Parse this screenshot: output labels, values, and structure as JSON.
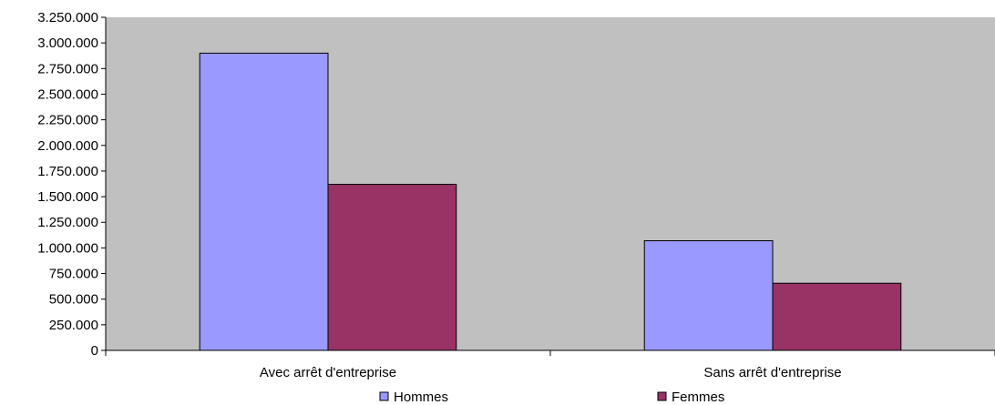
{
  "chart_data": {
    "type": "bar",
    "categories": [
      "Avec arrêt d'entreprise",
      "Sans arrêt d'entreprise"
    ],
    "series": [
      {
        "name": "Hommes",
        "values": [
          2900000,
          1070000
        ],
        "color": "#9999ff"
      },
      {
        "name": "Femmes",
        "values": [
          1620000,
          655000
        ],
        "color": "#993366"
      }
    ],
    "ylim": [
      0,
      3250000
    ],
    "yticks": [
      0,
      250000,
      500000,
      750000,
      1000000,
      1250000,
      1500000,
      1750000,
      2000000,
      2250000,
      2500000,
      2750000,
      3000000,
      3250000
    ],
    "ytick_labels": [
      "0",
      "250.000",
      "500.000",
      "750.000",
      "1.000.000",
      "1.250.000",
      "1.500.000",
      "1.750.000",
      "2.000.000",
      "2.250.000",
      "2.500.000",
      "2.750.000",
      "3.000.000",
      "3.250.000"
    ],
    "title": "",
    "xlabel": "",
    "ylabel": "",
    "plot_background": "#c0c0c0",
    "grid": false,
    "legend_position": "bottom"
  }
}
